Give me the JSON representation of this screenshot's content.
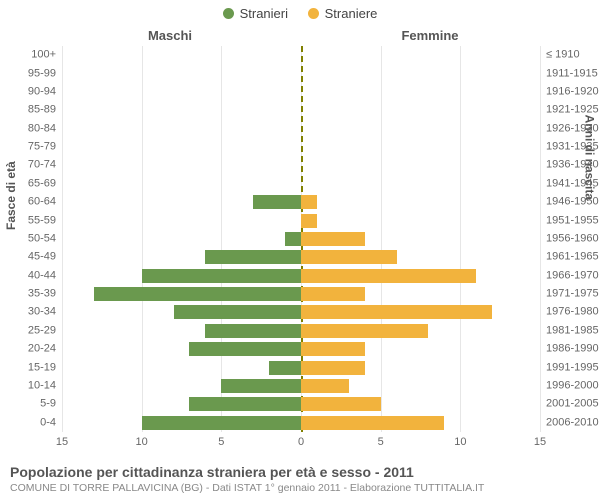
{
  "legend": {
    "items": [
      {
        "label": "Stranieri",
        "color": "#6a994e"
      },
      {
        "label": "Straniere",
        "color": "#f2b33d"
      }
    ]
  },
  "column_headers": {
    "left": "Maschi",
    "right": "Femmine"
  },
  "y_axis_titles": {
    "left": "Fasce di età",
    "right": "Anni di nascita"
  },
  "chart": {
    "type": "population-pyramid",
    "max_value": 15,
    "x_ticks": [
      15,
      10,
      5,
      0,
      5,
      10,
      15
    ],
    "grid_color": "#e6e6e6",
    "center_line_color": "#808000",
    "background_color": "#ffffff",
    "male_color": "#6a994e",
    "female_color": "#f2b33d",
    "label_fontsize": 11,
    "label_color": "#666666",
    "rows": [
      {
        "age": "100+",
        "birth": "≤ 1910",
        "male": 0,
        "female": 0
      },
      {
        "age": "95-99",
        "birth": "1911-1915",
        "male": 0,
        "female": 0
      },
      {
        "age": "90-94",
        "birth": "1916-1920",
        "male": 0,
        "female": 0
      },
      {
        "age": "85-89",
        "birth": "1921-1925",
        "male": 0,
        "female": 0
      },
      {
        "age": "80-84",
        "birth": "1926-1930",
        "male": 0,
        "female": 0
      },
      {
        "age": "75-79",
        "birth": "1931-1935",
        "male": 0,
        "female": 0
      },
      {
        "age": "70-74",
        "birth": "1936-1940",
        "male": 0,
        "female": 0
      },
      {
        "age": "65-69",
        "birth": "1941-1945",
        "male": 0,
        "female": 0
      },
      {
        "age": "60-64",
        "birth": "1946-1950",
        "male": 3,
        "female": 1
      },
      {
        "age": "55-59",
        "birth": "1951-1955",
        "male": 0,
        "female": 1
      },
      {
        "age": "50-54",
        "birth": "1956-1960",
        "male": 1,
        "female": 4
      },
      {
        "age": "45-49",
        "birth": "1961-1965",
        "male": 6,
        "female": 6
      },
      {
        "age": "40-44",
        "birth": "1966-1970",
        "male": 10,
        "female": 11
      },
      {
        "age": "35-39",
        "birth": "1971-1975",
        "male": 13,
        "female": 4
      },
      {
        "age": "30-34",
        "birth": "1976-1980",
        "male": 8,
        "female": 12
      },
      {
        "age": "25-29",
        "birth": "1981-1985",
        "male": 6,
        "female": 8
      },
      {
        "age": "20-24",
        "birth": "1986-1990",
        "male": 7,
        "female": 4
      },
      {
        "age": "15-19",
        "birth": "1991-1995",
        "male": 2,
        "female": 4
      },
      {
        "age": "10-14",
        "birth": "1996-2000",
        "male": 5,
        "female": 3
      },
      {
        "age": "5-9",
        "birth": "2001-2005",
        "male": 7,
        "female": 5
      },
      {
        "age": "0-4",
        "birth": "2006-2010",
        "male": 10,
        "female": 9
      }
    ]
  },
  "footer": {
    "title": "Popolazione per cittadinanza straniera per età e sesso - 2011",
    "subtitle": "COMUNE DI TORRE PALLAVICINA (BG) - Dati ISTAT 1° gennaio 2011 - Elaborazione TUTTITALIA.IT"
  }
}
